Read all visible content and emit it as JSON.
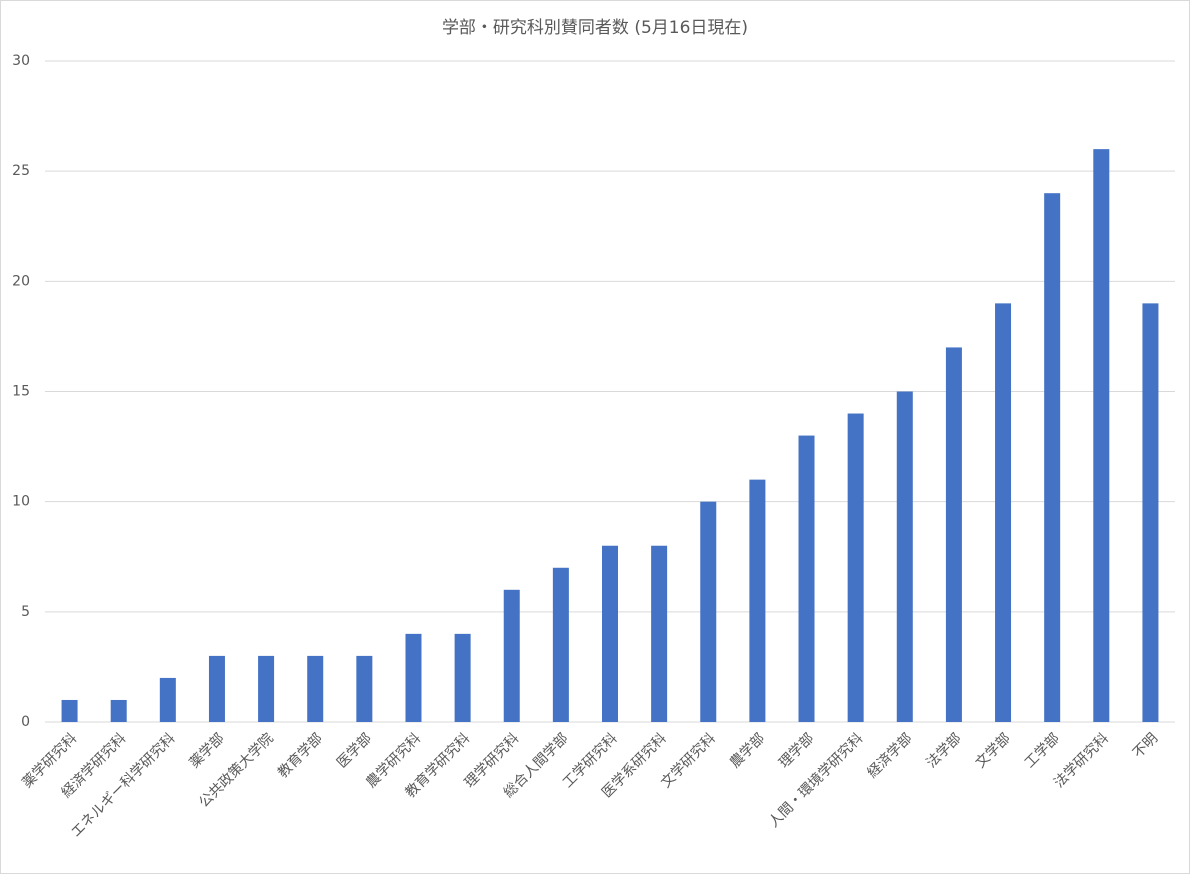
{
  "chart_data": {
    "type": "bar",
    "title": "学部・研究科別賛同者数 (5月16日現在)",
    "categories": [
      "薬学研究科",
      "経済学研究科",
      "エネルギー科学研究科",
      "薬学部",
      "公共政策大学院",
      "教育学部",
      "医学部",
      "農学研究科",
      "教育学研究科",
      "理学研究科",
      "総合人間学部",
      "工学研究科",
      "医学系研究科",
      "文学研究科",
      "農学部",
      "理学部",
      "人間・環境学研究科",
      "経済学部",
      "法学部",
      "文学部",
      "工学部",
      "法学研究科",
      "不明"
    ],
    "values": [
      1,
      1,
      2,
      3,
      3,
      3,
      3,
      4,
      4,
      6,
      7,
      8,
      8,
      10,
      11,
      13,
      14,
      15,
      17,
      19,
      24,
      26,
      19
    ],
    "color": "#4472c4",
    "ylim": [
      0,
      30
    ],
    "yticks": [
      0,
      5,
      10,
      15,
      20,
      25,
      30
    ],
    "grid": true
  }
}
